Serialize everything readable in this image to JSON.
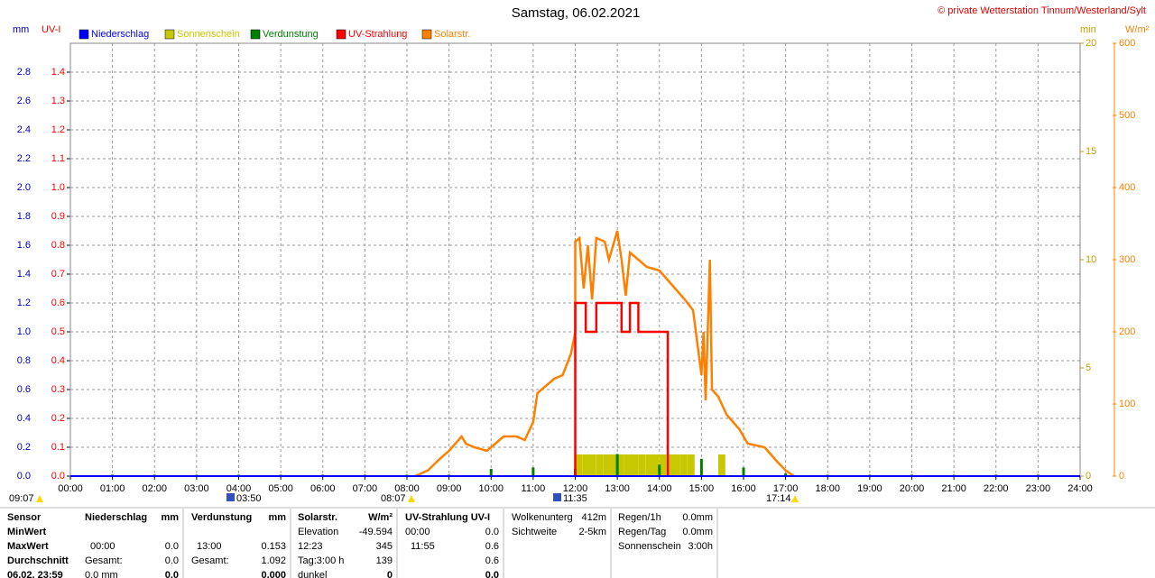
{
  "chart_data": {
    "type": "line",
    "title": "Samstag, 06.02.2021",
    "copyright": "© private Wetterstation Tinnum/Westerland/Sylt",
    "xlim": [
      0,
      24
    ],
    "xticks": [
      {
        "value": 0,
        "label": "00:00"
      },
      {
        "value": 1,
        "label": "01:00"
      },
      {
        "value": 2,
        "label": "02:00"
      },
      {
        "value": 3,
        "label": "03:00"
      },
      {
        "value": 4,
        "label": "04:00"
      },
      {
        "value": 5,
        "label": "05:00"
      },
      {
        "value": 6,
        "label": "06:00"
      },
      {
        "value": 7,
        "label": "07:00"
      },
      {
        "value": 8,
        "label": "08:00"
      },
      {
        "value": 9,
        "label": "09:00"
      },
      {
        "value": 10,
        "label": "10:00"
      },
      {
        "value": 11,
        "label": "11:00"
      },
      {
        "value": 12,
        "label": "12:00"
      },
      {
        "value": 13,
        "label": "13:00"
      },
      {
        "value": 14,
        "label": "14:00"
      },
      {
        "value": 15,
        "label": "15:00"
      },
      {
        "value": 16,
        "label": "16:00"
      },
      {
        "value": 17,
        "label": "17:00"
      },
      {
        "value": 18,
        "label": "18:00"
      },
      {
        "value": 19,
        "label": "19:00"
      },
      {
        "value": 20,
        "label": "20:00"
      },
      {
        "value": 21,
        "label": "21:00"
      },
      {
        "value": 22,
        "label": "22:00"
      },
      {
        "value": 23,
        "label": "23:00"
      },
      {
        "value": 24,
        "label": "24:00"
      }
    ],
    "grid": true,
    "axes": {
      "mm": {
        "label": "mm",
        "color": "#0000c0",
        "lim": [
          0,
          3
        ],
        "ticks": [
          {
            "value": 0,
            "label": "0.0"
          },
          0.2,
          0.4,
          0.6,
          0.8,
          {
            "value": 1,
            "label": "1.0"
          },
          1.2,
          1.4,
          1.6,
          1.8,
          {
            "value": 2,
            "label": "2.0"
          },
          2.2,
          2.4,
          2.6,
          2.8
        ]
      },
      "uv": {
        "label": "UV-I",
        "color": "#ff0000",
        "lim": [
          0,
          1.5
        ],
        "ticks": [
          {
            "value": 0,
            "label": "0.0"
          },
          0.1,
          0.2,
          0.3,
          0.4,
          0.5,
          0.6,
          0.7,
          0.8,
          0.9,
          {
            "value": 1,
            "label": "1.0"
          },
          1.1,
          1.2,
          1.3,
          1.4
        ]
      },
      "min": {
        "label": "min",
        "color": "#c8a000",
        "lim": [
          0,
          20
        ],
        "ticks": [
          0,
          5,
          10,
          15,
          20
        ]
      },
      "wm2": {
        "label": "W/m²",
        "color": "#ff8000",
        "lim": [
          0,
          600
        ],
        "ticks": [
          0,
          100,
          200,
          300,
          400,
          500,
          600
        ]
      }
    },
    "series": [
      {
        "name": "Niederschlag",
        "color": "#0000ff",
        "type": "line",
        "axis": "mm",
        "x": [
          0,
          24
        ],
        "values": [
          0,
          0
        ]
      },
      {
        "name": "Sonnenschein",
        "color": "#c8c800",
        "type": "bar",
        "axis": "min",
        "x": [
          12.0,
          12.17,
          12.33,
          12.5,
          12.67,
          12.83,
          13.0,
          13.17,
          13.33,
          13.5,
          13.67,
          13.83,
          14.0,
          14.17,
          14.33,
          14.5,
          14.67,
          15.4
        ],
        "values": [
          1,
          1,
          1,
          1,
          1,
          1,
          1,
          1,
          1,
          1,
          1,
          1,
          1,
          1,
          1,
          1,
          1,
          1
        ]
      },
      {
        "name": "Verdunstung",
        "color": "#008000",
        "type": "bar",
        "axis": "mm",
        "x": [
          1,
          2,
          3,
          4,
          5,
          6,
          7,
          8,
          9,
          10,
          11,
          12,
          13,
          14,
          15,
          16,
          17,
          18,
          19,
          20,
          21,
          22,
          23
        ],
        "values": [
          0.01,
          0.01,
          0.01,
          0.01,
          0.01,
          0.01,
          0.01,
          0.01,
          0.01,
          0.05,
          0.06,
          0.05,
          0.153,
          0.08,
          0.12,
          0.06,
          0.02,
          0.01,
          0.01,
          0.01,
          0.01,
          0.01,
          0.01
        ]
      },
      {
        "name": "UV-Strahlung",
        "color": "#ff0000",
        "type": "line",
        "axis": "uv",
        "x": [
          12.0,
          12.0,
          12.25,
          12.25,
          12.5,
          12.5,
          13.1,
          13.1,
          13.3,
          13.3,
          13.5,
          13.5,
          14.2,
          14.2
        ],
        "values": [
          0,
          0.6,
          0.6,
          0.5,
          0.5,
          0.6,
          0.6,
          0.5,
          0.5,
          0.6,
          0.6,
          0.5,
          0.5,
          0
        ]
      },
      {
        "name": "Solarstr.",
        "color": "#ff8000",
        "type": "line",
        "axis": "wm2",
        "x": [
          8.2,
          8.5,
          8.8,
          9.0,
          9.3,
          9.4,
          9.6,
          9.9,
          10.1,
          10.3,
          10.6,
          10.8,
          11.0,
          11.1,
          11.3,
          11.5,
          11.7,
          11.9,
          12.0,
          12.0,
          12.1,
          12.2,
          12.3,
          12.4,
          12.5,
          12.7,
          12.8,
          12.9,
          13.0,
          13.1,
          13.2,
          13.3,
          13.5,
          13.7,
          14.0,
          14.3,
          14.6,
          14.8,
          14.9,
          15.0,
          15.05,
          15.1,
          15.2,
          15.25,
          15.4,
          15.6,
          15.9,
          16.1,
          16.5,
          16.8,
          17.0,
          17.2
        ],
        "values": [
          0,
          8,
          25,
          35,
          55,
          45,
          40,
          35,
          45,
          55,
          55,
          50,
          75,
          115,
          125,
          135,
          140,
          170,
          200,
          325,
          330,
          260,
          320,
          245,
          330,
          325,
          300,
          320,
          340,
          300,
          250,
          310,
          300,
          290,
          285,
          265,
          245,
          230,
          185,
          140,
          200,
          105,
          300,
          120,
          110,
          85,
          65,
          45,
          40,
          20,
          8,
          0
        ]
      }
    ],
    "annotations": [
      "09:07",
      "03:50",
      "08:07",
      "11:35",
      "17:14"
    ]
  },
  "table": {
    "sensor": [
      "Sensor",
      "MinWert",
      "MaxWert",
      "Durchschnitt",
      "06.02. 23:59"
    ],
    "sections": [
      {
        "rows": [
          [
            "Niederschlag",
            "mm"
          ],
          [
            null,
            null
          ],
          [
            "00:00",
            "0.0"
          ],
          [
            "Gesamt:",
            "0.0"
          ],
          [
            "0.0 mm",
            "0.0"
          ]
        ]
      },
      {
        "rows": [
          [
            "Verdunstung",
            "mm"
          ],
          [
            null,
            null
          ],
          [
            "13:00",
            "0.153"
          ],
          [
            "Gesamt:",
            "1.092"
          ],
          [
            null,
            "0.000"
          ]
        ]
      },
      {
        "rows": [
          [
            "Solarstr.",
            "W/m²"
          ],
          [
            "Elevation",
            "-49.594"
          ],
          [
            "12:23",
            "345"
          ],
          [
            "Tag:3:00 h",
            "139"
          ],
          [
            "dunkel",
            "0"
          ]
        ]
      },
      {
        "rows": [
          [
            "UV-Strahlung UV-I"
          ],
          [
            "00:00",
            "0.0"
          ],
          [
            "11:55",
            "0.6"
          ],
          [
            null,
            "0.6"
          ],
          [
            null,
            "0.0"
          ]
        ]
      },
      {
        "rows": [
          [
            "Wolkenunterg",
            "412m"
          ],
          [
            "Sichtweite",
            "2-5km"
          ]
        ]
      },
      {
        "rows": [
          [
            "Regen/1h",
            "0.0mm"
          ],
          [
            "Regen/Tag",
            "0.0mm"
          ],
          [
            "Sonnenschein",
            "3:00h"
          ]
        ]
      }
    ]
  }
}
